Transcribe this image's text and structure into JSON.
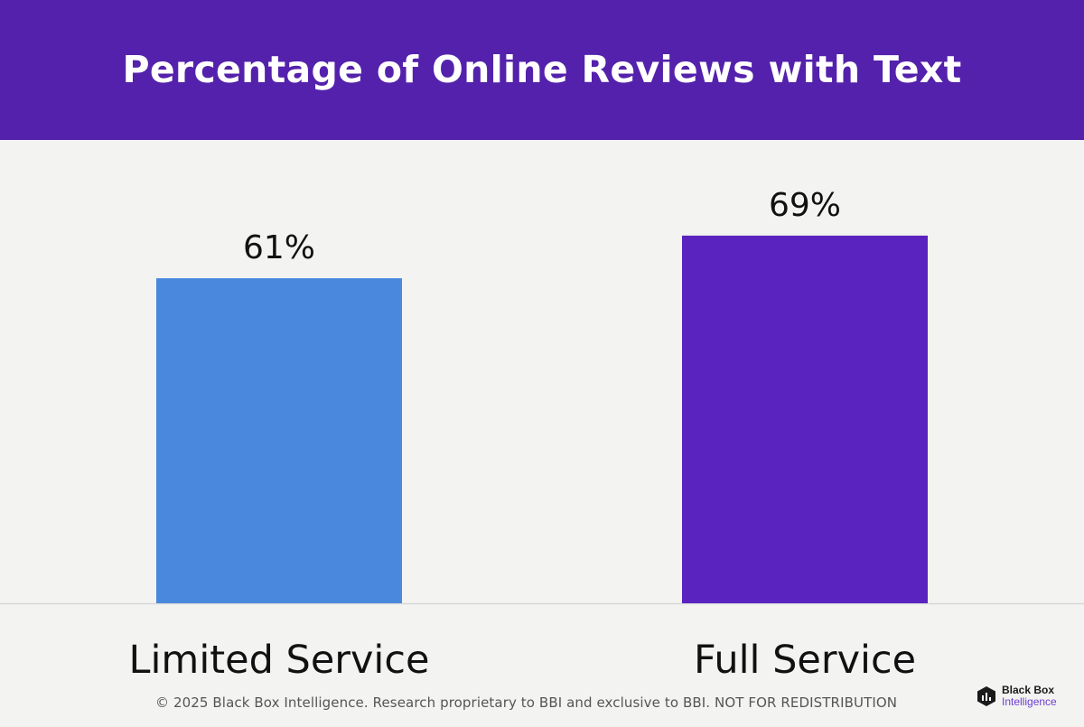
{
  "header": {
    "title": "Percentage of Online Reviews with Text"
  },
  "chart_data": {
    "type": "bar",
    "title": "Percentage of Online Reviews with Text",
    "categories": [
      "Limited Service",
      "Full Service"
    ],
    "values": [
      61,
      69
    ],
    "value_labels": [
      "61%",
      "69%"
    ],
    "unit": "%",
    "ylim": [
      0,
      100
    ],
    "xlabel": "",
    "ylabel": "",
    "grid": false,
    "legend": "none",
    "bar_colors": [
      "#4a88de",
      "#5a22be"
    ]
  },
  "footer": {
    "copyright": "© 2025 Black Box Intelligence. Research proprietary to BBI and exclusive to BBI. NOT FOR REDISTRIBUTION"
  },
  "logo": {
    "line1": "Black Box",
    "line2": "Intelligence",
    "icon": "black-box-cube-icon"
  },
  "colors": {
    "header_bg": "#5421ac",
    "background": "#f3f3f2",
    "axis": "#d8d8d8"
  }
}
